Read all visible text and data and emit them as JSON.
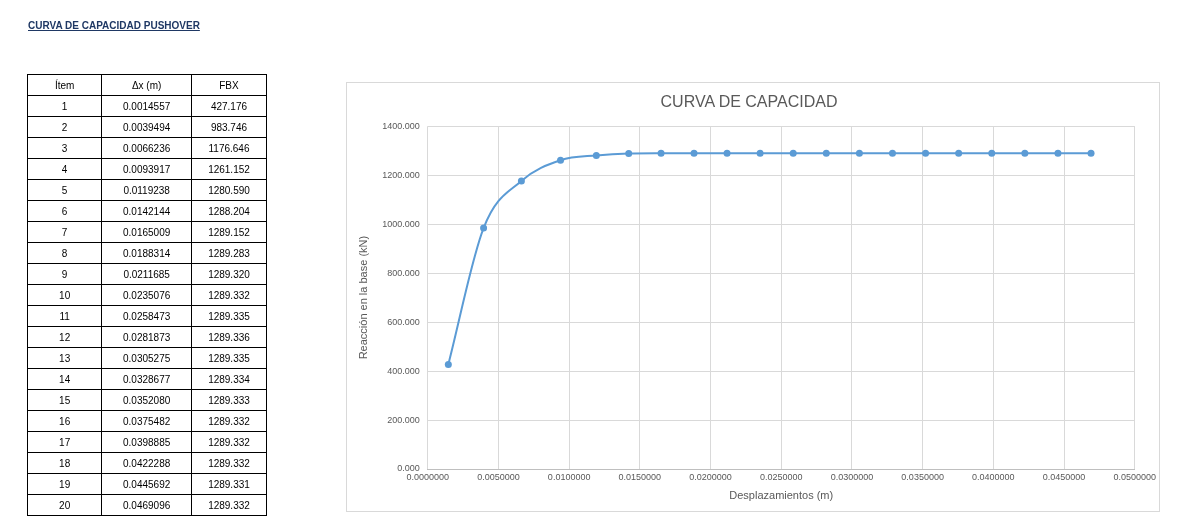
{
  "chart_data": {
    "type": "line",
    "title": "CURVA DE CAPACIDAD",
    "xlabel": "Desplazamientos (m)",
    "ylabel": "Reacción en la base (kN)",
    "annotations": [
      "CURVA DE CAPACIDAD PUSHOVER",
      "Ítem",
      "Δx (m)",
      "FBX",
      "1",
      "0.0014557",
      "427.176",
      "2",
      "0.0039494",
      "983.746",
      "3",
      "0.0066236",
      "1176.646",
      "4",
      "0.0093917",
      "1261.152",
      "5",
      "0.0119238",
      "1280.590",
      "6",
      "0.0142144",
      "1288.204",
      "7",
      "0.0165009",
      "1289.152",
      "8",
      "0.0188314",
      "1289.283",
      "9",
      "0.0211685",
      "1289.320",
      "10",
      "0.0235076",
      "1289.332",
      "11",
      "0.0258473",
      "1289.335",
      "12",
      "0.0281873",
      "1289.336",
      "13",
      "0.0305275",
      "1289.335",
      "14",
      "0.0328677",
      "1289.334",
      "15",
      "0.0352080",
      "1289.333",
      "16",
      "0.0375482",
      "1289.332",
      "17",
      "0.0398885",
      "1289.332",
      "18",
      "0.0422288",
      "1289.332",
      "19",
      "0.0445692",
      "1289.331",
      "20",
      "0.0469096",
      "1289.332"
    ],
    "x": [
      0.0014557,
      0.0039494,
      0.0066236,
      0.0093917,
      0.0119238,
      0.0142144,
      0.0165009,
      0.0188314,
      0.0211685,
      0.0235076,
      0.0258473,
      0.0281873,
      0.0305275,
      0.0328677,
      0.035208,
      0.0375482,
      0.0398885,
      0.0422288,
      0.0445692,
      0.0469096
    ],
    "series": [
      {
        "color": "#5b9bd5",
        "values": [
          427.176,
          983.746,
          1176.646,
          1261.152,
          1280.59,
          1288.204,
          1289.152,
          1289.283,
          1289.32,
          1289.332,
          1289.335,
          1289.336,
          1289.335,
          1289.334,
          1289.333,
          1289.332,
          1289.332,
          1289.332,
          1289.331,
          1289.332
        ]
      }
    ],
    "xlim": [
      0,
      0.05
    ],
    "xticks": [
      {
        "value": 0,
        "label": "0.0000000"
      },
      {
        "value": 0.005,
        "label": "0.0050000"
      },
      {
        "value": 0.01,
        "label": "0.0100000"
      },
      {
        "value": 0.015,
        "label": "0.0150000"
      },
      {
        "value": 0.02,
        "label": "0.0200000"
      },
      {
        "value": 0.025,
        "label": "0.0250000"
      },
      {
        "value": 0.03,
        "label": "0.0300000"
      },
      {
        "value": 0.035,
        "label": "0.0350000"
      },
      {
        "value": 0.04,
        "label": "0.0400000"
      },
      {
        "value": 0.045,
        "label": "0.0450000"
      },
      {
        "value": 0.05,
        "label": "0.0500000"
      }
    ],
    "ylim": [
      0,
      1400
    ],
    "yticks": [
      {
        "value": 0,
        "label": "0.000"
      },
      {
        "value": 200,
        "label": "200.000"
      },
      {
        "value": 400,
        "label": "400.000"
      },
      {
        "value": 600,
        "label": "600.000"
      },
      {
        "value": 800,
        "label": "800.000"
      },
      {
        "value": 1000,
        "label": "1000.000"
      },
      {
        "value": 1200,
        "label": "1200.000"
      },
      {
        "value": 1400,
        "label": "1400.000"
      }
    ],
    "grid": true,
    "legend": false,
    "marker": "circle",
    "line_style": "solid"
  }
}
